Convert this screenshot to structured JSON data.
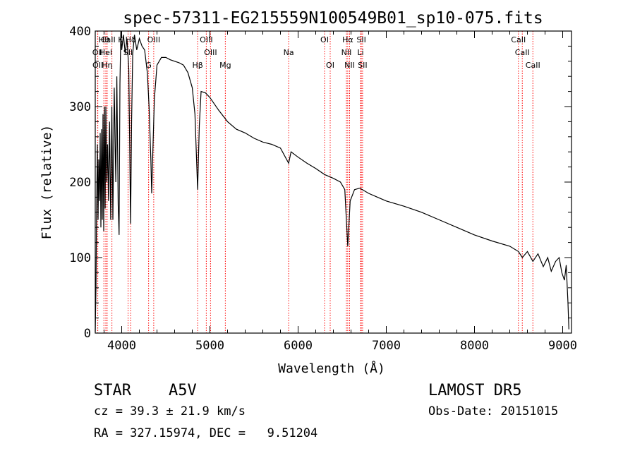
{
  "chart_data": {
    "type": "line",
    "title": "spec-57311-EG215559N100549B01_sp10-075.fits",
    "xlabel": "Wavelength (Å)",
    "ylabel": "Flux (relative)",
    "xlim": [
      3700,
      9100
    ],
    "ylim": [
      0,
      400
    ],
    "xticks": [
      4000,
      5000,
      6000,
      7000,
      8000,
      9000
    ],
    "yticks": [
      0,
      100,
      200,
      300,
      400
    ],
    "grid": false,
    "line_color": "#000000",
    "marker_color": "#ff0000",
    "series": [
      {
        "points": [
          [
            3700,
            2
          ],
          [
            3708,
            60
          ],
          [
            3716,
            170
          ],
          [
            3724,
            250
          ],
          [
            3732,
            150
          ],
          [
            3740,
            230
          ],
          [
            3748,
            175
          ],
          [
            3756,
            265
          ],
          [
            3764,
            140
          ],
          [
            3772,
            270
          ],
          [
            3780,
            150
          ],
          [
            3788,
            290
          ],
          [
            3796,
            135
          ],
          [
            3804,
            300
          ],
          [
            3812,
            165
          ],
          [
            3820,
            300
          ],
          [
            3830,
            200
          ],
          [
            3840,
            250
          ],
          [
            3850,
            175
          ],
          [
            3862,
            280
          ],
          [
            3875,
            150
          ],
          [
            3888,
            300
          ],
          [
            3900,
            150
          ],
          [
            3915,
            325
          ],
          [
            3933,
            200
          ],
          [
            3945,
            340
          ],
          [
            3960,
            170
          ],
          [
            3970,
            130
          ],
          [
            3980,
            330
          ],
          [
            3990,
            400
          ],
          [
            4000,
            375
          ],
          [
            4020,
            395
          ],
          [
            4040,
            370
          ],
          [
            4060,
            390
          ],
          [
            4080,
            350
          ],
          [
            4090,
            250
          ],
          [
            4101,
            145
          ],
          [
            4112,
            280
          ],
          [
            4125,
            370
          ],
          [
            4145,
            395
          ],
          [
            4170,
            375
          ],
          [
            4200,
            390
          ],
          [
            4230,
            380
          ],
          [
            4260,
            375
          ],
          [
            4290,
            345
          ],
          [
            4310,
            300
          ],
          [
            4330,
            230
          ],
          [
            4340,
            185
          ],
          [
            4350,
            230
          ],
          [
            4370,
            310
          ],
          [
            4400,
            355
          ],
          [
            4450,
            365
          ],
          [
            4500,
            365
          ],
          [
            4550,
            362
          ],
          [
            4600,
            360
          ],
          [
            4650,
            358
          ],
          [
            4700,
            355
          ],
          [
            4750,
            345
          ],
          [
            4800,
            325
          ],
          [
            4830,
            290
          ],
          [
            4861,
            190
          ],
          [
            4880,
            275
          ],
          [
            4900,
            320
          ],
          [
            4950,
            318
          ],
          [
            5000,
            312
          ],
          [
            5100,
            295
          ],
          [
            5200,
            280
          ],
          [
            5300,
            270
          ],
          [
            5400,
            265
          ],
          [
            5500,
            258
          ],
          [
            5600,
            253
          ],
          [
            5700,
            250
          ],
          [
            5800,
            245
          ],
          [
            5893,
            225
          ],
          [
            5920,
            240
          ],
          [
            6000,
            233
          ],
          [
            6100,
            225
          ],
          [
            6200,
            218
          ],
          [
            6300,
            210
          ],
          [
            6400,
            205
          ],
          [
            6480,
            200
          ],
          [
            6530,
            190
          ],
          [
            6563,
            115
          ],
          [
            6590,
            175
          ],
          [
            6640,
            190
          ],
          [
            6700,
            192
          ],
          [
            6800,
            185
          ],
          [
            6900,
            180
          ],
          [
            7000,
            175
          ],
          [
            7200,
            168
          ],
          [
            7400,
            160
          ],
          [
            7600,
            150
          ],
          [
            7800,
            140
          ],
          [
            8000,
            130
          ],
          [
            8200,
            122
          ],
          [
            8400,
            115
          ],
          [
            8498,
            108
          ],
          [
            8542,
            100
          ],
          [
            8600,
            108
          ],
          [
            8662,
            95
          ],
          [
            8720,
            105
          ],
          [
            8780,
            88
          ],
          [
            8830,
            100
          ],
          [
            8870,
            82
          ],
          [
            8920,
            95
          ],
          [
            8960,
            100
          ],
          [
            8990,
            80
          ],
          [
            9020,
            70
          ],
          [
            9040,
            90
          ],
          [
            9060,
            40
          ],
          [
            9070,
            5
          ]
        ]
      }
    ],
    "lines": [
      {
        "label": "Hθ",
        "x": 3798,
        "row": 0
      },
      {
        "label": "CaII K",
        "x": 3889,
        "row": 0
      },
      {
        "label": "Hδ",
        "x": 4101,
        "row": 0
      },
      {
        "label": "OIII",
        "x": 4363,
        "row": 0
      },
      {
        "label": "OIII",
        "x": 4959,
        "row": 0
      },
      {
        "label": "Na",
        "x": 5893,
        "row": 1
      },
      {
        "label": "OI",
        "x": 6300,
        "row": 0
      },
      {
        "label": "OI",
        "x": 6364,
        "row": 2
      },
      {
        "label": "Hα",
        "x": 6563,
        "row": 0
      },
      {
        "label": "SII",
        "x": 6717,
        "row": 0
      },
      {
        "label": "NII",
        "x": 6548,
        "row": 1
      },
      {
        "label": "Li",
        "x": 6708,
        "row": 1
      },
      {
        "label": "NII",
        "x": 6584,
        "row": 2
      },
      {
        "label": "SII",
        "x": 6731,
        "row": 2
      },
      {
        "label": "OII",
        "x": 3727,
        "row": 1
      },
      {
        "label": "HeI",
        "x": 3820,
        "row": 1
      },
      {
        "label": "SII",
        "x": 4072,
        "row": 1
      },
      {
        "label": "OIII",
        "x": 5007,
        "row": 1
      },
      {
        "label": "OII",
        "x": 3729,
        "row": 2
      },
      {
        "label": "Hη",
        "x": 3835,
        "row": 2
      },
      {
        "label": "G",
        "x": 4305,
        "row": 2
      },
      {
        "label": "Hβ",
        "x": 4861,
        "row": 2
      },
      {
        "label": "Mg",
        "x": 5175,
        "row": 2
      },
      {
        "label": "CaII",
        "x": 8498,
        "row": 0
      },
      {
        "label": "CaII",
        "x": 8542,
        "row": 1
      },
      {
        "label": "CaII",
        "x": 8662,
        "row": 2
      }
    ]
  },
  "info": {
    "class_line": "STAR    A5V",
    "survey": "LAMOST DR5",
    "cz": "cz = 39.3 ± 21.9 km/s",
    "obs_date": "Obs-Date: 20151015",
    "coords": "RA = 327.15974, DEC =   9.51204"
  }
}
